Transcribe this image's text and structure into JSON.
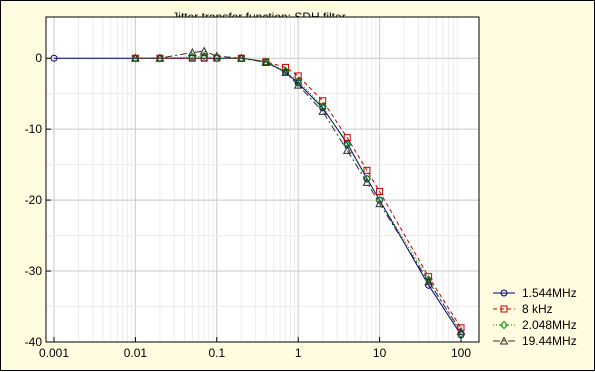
{
  "chart_data": {
    "type": "line",
    "title": "Jitter transfer function; SDH filter",
    "xlabel": "",
    "ylabel": "",
    "xscale": "log",
    "xlim": [
      0.001,
      100
    ],
    "ylim": [
      -40,
      2
    ],
    "x_ticks": [
      {
        "value": 0.001,
        "label": "0.001"
      },
      {
        "value": 0.01,
        "label": "0.01"
      },
      {
        "value": 0.1,
        "label": "0.1"
      },
      {
        "value": 1,
        "label": "1"
      },
      {
        "value": 10,
        "label": "10"
      },
      {
        "value": 100,
        "label": "100"
      }
    ],
    "y_ticks": [
      {
        "value": 0,
        "label": "0"
      },
      {
        "value": -10,
        "label": "-10"
      },
      {
        "value": -20,
        "label": "-20"
      },
      {
        "value": -30,
        "label": "-30"
      },
      {
        "value": -40,
        "label": "-40"
      }
    ],
    "grid": true,
    "legend_position": "bottom-right, outside plot",
    "series": [
      {
        "name": "1.544MHz",
        "color": "#000080",
        "dash": "solid",
        "marker": "circle",
        "x": [
          0.001,
          0.01,
          0.02,
          0.05,
          0.07,
          0.1,
          0.2,
          0.4,
          0.7,
          1,
          2,
          4,
          7,
          10,
          40,
          100
        ],
        "y": [
          0,
          0,
          0,
          0,
          0,
          0,
          0,
          -0.5,
          -2,
          -3.5,
          -7,
          -12,
          -17,
          -20,
          -32,
          -39
        ]
      },
      {
        "name": "8 kHz",
        "color": "#c00000",
        "dash": "4,3",
        "marker": "square",
        "x": [
          0.01,
          0.02,
          0.05,
          0.07,
          0.1,
          0.2,
          0.4,
          0.7,
          1,
          2,
          4,
          7,
          10,
          40,
          100
        ],
        "y": [
          0,
          0,
          0,
          0,
          0,
          0,
          -0.5,
          -1.3,
          -2.5,
          -6,
          -11.2,
          -15.8,
          -18.8,
          -30.8,
          -38
        ]
      },
      {
        "name": "2.048MHz",
        "color": "#009000",
        "dash": "1,2",
        "marker": "diamond",
        "x": [
          0.01,
          0.02,
          0.05,
          0.07,
          0.1,
          0.2,
          0.4,
          0.7,
          1,
          2,
          4,
          7,
          10,
          40,
          100
        ],
        "y": [
          0,
          0,
          0.2,
          0.3,
          0,
          0,
          -0.5,
          -1.8,
          -3.2,
          -6.8,
          -12.2,
          -17,
          -20,
          -31.2,
          -38.8
        ]
      },
      {
        "name": "19.44MHz",
        "color": "#303030",
        "dash": "7,3,2,3",
        "marker": "triangle",
        "x": [
          0.01,
          0.02,
          0.05,
          0.07,
          0.1,
          0.2,
          0.4,
          0.7,
          1,
          2,
          4,
          7,
          10,
          40,
          100
        ],
        "y": [
          0,
          0,
          0.8,
          1,
          0.3,
          0,
          -0.6,
          -2,
          -3.8,
          -7.5,
          -13,
          -17.5,
          -20.5,
          -31.5,
          -38.5
        ]
      }
    ]
  }
}
